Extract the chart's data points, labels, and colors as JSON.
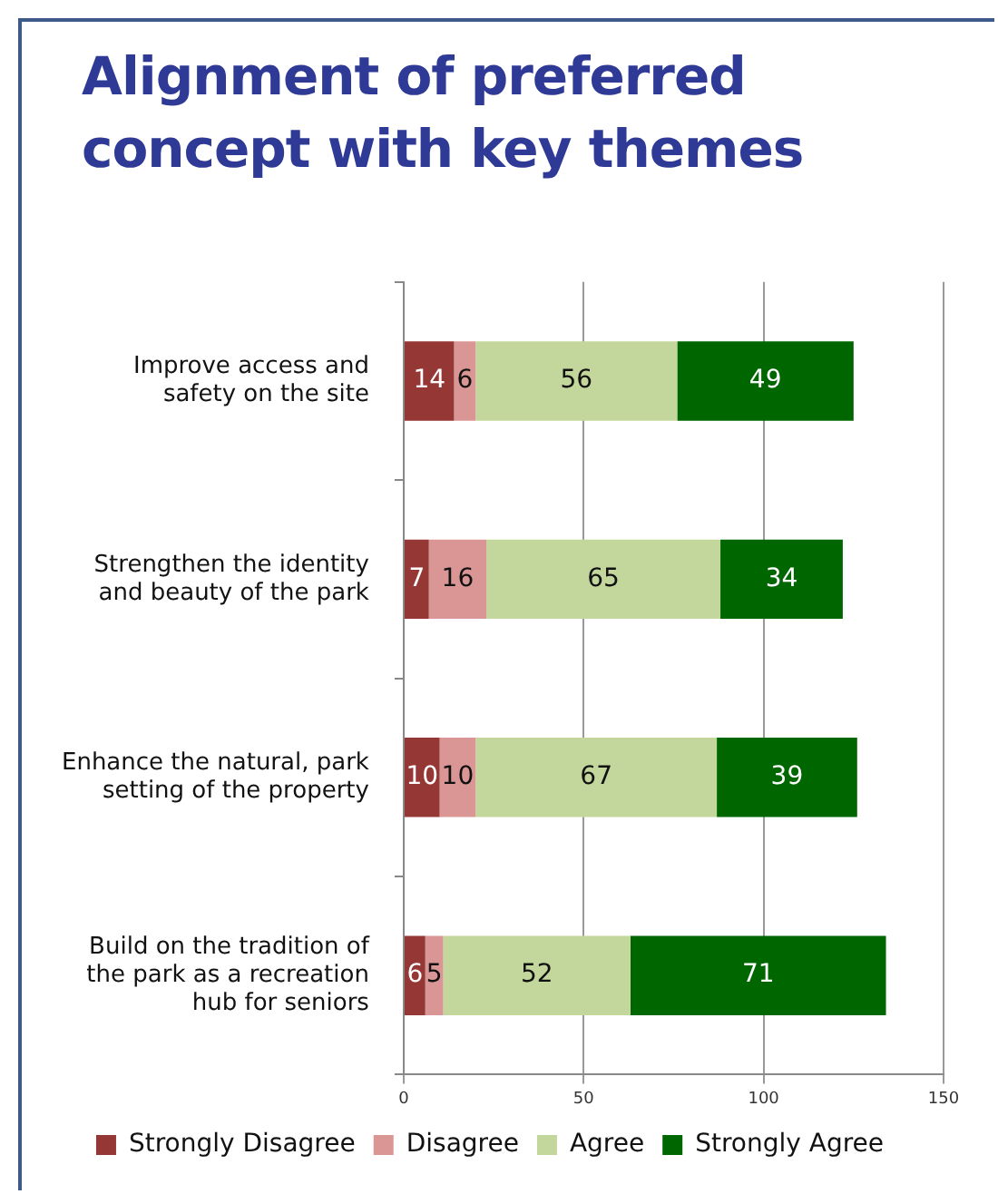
{
  "chart_data": {
    "type": "bar",
    "orientation": "horizontal",
    "stacked": true,
    "title": "Alignment of preferred concept with key themes",
    "categories": [
      "Improve access and safety on the site",
      "Strengthen the identity and beauty of the park",
      "Enhance the natural, park setting of the property",
      "Build on the tradition of the park as a recreation hub for seniors"
    ],
    "series": [
      {
        "name": "Strongly Disagree",
        "color": "#953735",
        "values": [
          14,
          7,
          10,
          6
        ]
      },
      {
        "name": "Disagree",
        "color": "#d99694",
        "values": [
          6,
          16,
          10,
          5
        ]
      },
      {
        "name": "Agree",
        "color": "#c3d69b",
        "values": [
          56,
          65,
          67,
          52
        ]
      },
      {
        "name": "Strongly Agree",
        "color": "#006600",
        "values": [
          49,
          34,
          39,
          71
        ]
      }
    ],
    "xlim": [
      0,
      150
    ],
    "xticks": [
      0,
      50,
      100,
      150
    ],
    "grid": "x",
    "legend": "bottom",
    "data_labels": true
  }
}
